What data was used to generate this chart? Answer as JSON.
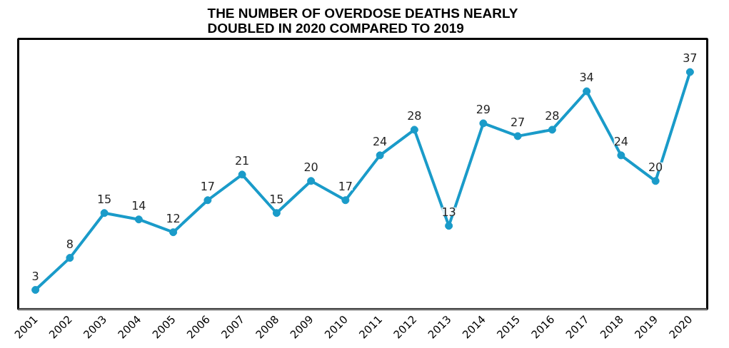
{
  "chart_data": {
    "type": "line",
    "title": "THE NUMBER OF OVERDOSE DEATHS NEARLY\nDOUBLED IN 2020 COMPARED TO 2019",
    "categories": [
      "2001",
      "2002",
      "2003",
      "2004",
      "2005",
      "2006",
      "2007",
      "2008",
      "2009",
      "2010",
      "2011",
      "2012",
      "2013",
      "2014",
      "2015",
      "2016",
      "2017",
      "2018",
      "2019",
      "2020"
    ],
    "series": [
      {
        "color": "#1a9bc9",
        "values": [
          3,
          8,
          15,
          14,
          12,
          17,
          21,
          15,
          20,
          17,
          24,
          28,
          13,
          29,
          27,
          28,
          34,
          24,
          20,
          37
        ]
      }
    ],
    "data_labels": true,
    "marker": "circle",
    "line_style": "solid",
    "grid": false,
    "tick_labels": "x"
  }
}
